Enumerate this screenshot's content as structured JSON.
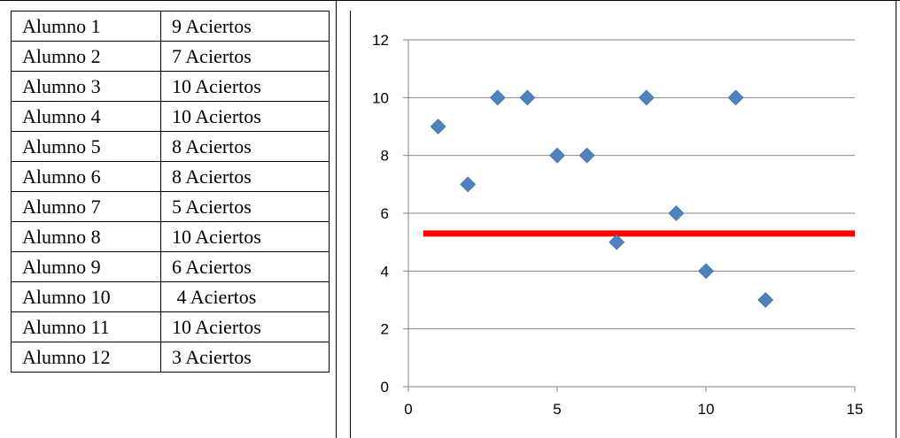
{
  "table": {
    "rows": [
      {
        "name": "Alumno 1",
        "score": "9 Aciertos"
      },
      {
        "name": "Alumno 2",
        "score": "7 Aciertos"
      },
      {
        "name": "Alumno 3",
        "score": "10 Aciertos"
      },
      {
        "name": "Alumno 4",
        "score": "10 Aciertos"
      },
      {
        "name": "Alumno 5",
        "score": "8 Aciertos"
      },
      {
        "name": "Alumno 6",
        "score": "8 Aciertos"
      },
      {
        "name": "Alumno 7",
        "score": "5 Aciertos"
      },
      {
        "name": "Alumno 8",
        "score": "10 Aciertos"
      },
      {
        "name": "Alumno 9",
        "score": "6 Aciertos"
      },
      {
        "name": "Alumno 10",
        "score": " 4 Aciertos"
      },
      {
        "name": "Alumno 11",
        "score": "10 Aciertos"
      },
      {
        "name": "Alumno 12",
        "score": "3 Aciertos"
      }
    ]
  },
  "chart_data": {
    "type": "scatter",
    "title": "",
    "xlabel": "",
    "ylabel": "",
    "xlim": [
      0,
      15
    ],
    "ylim": [
      0,
      12
    ],
    "xticks": [
      0,
      5,
      10,
      15
    ],
    "yticks": [
      0,
      2,
      4,
      6,
      8,
      10,
      12
    ],
    "grid": "horizontal",
    "legend": "none",
    "series": [
      {
        "marker": "diamond",
        "color": "#4f81bd",
        "x": [
          1,
          2,
          3,
          4,
          5,
          6,
          7,
          8,
          9,
          10,
          11,
          12
        ],
        "y": [
          9,
          7,
          10,
          10,
          8,
          8,
          5,
          10,
          6,
          4,
          10,
          3
        ]
      }
    ],
    "reference_line": {
      "color": "#ff0000",
      "y": 5.3,
      "x_from": 0.5,
      "x_to": 15
    }
  }
}
